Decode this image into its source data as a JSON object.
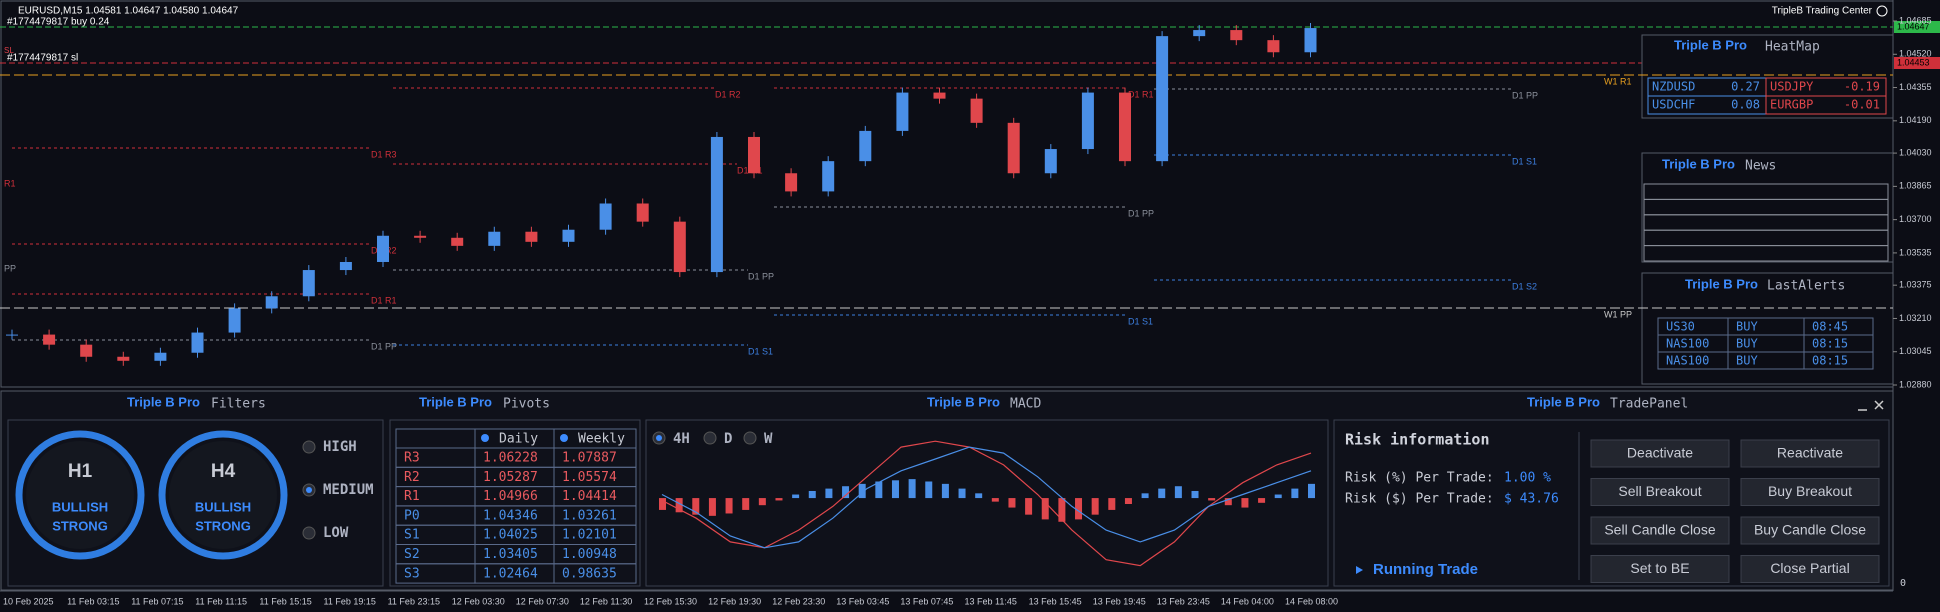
{
  "header": {
    "symbol": "EURUSD,M15  1.04581 1.04647 1.04580 1.04647",
    "order_buy": "#1774479817 buy 0.24",
    "order_sl": "#1774479817 sl",
    "sl_tag": "SL",
    "brand": "TripleB Trading Center"
  },
  "price_chart": {
    "closes": [
      1.0313,
      1.0308,
      1.0302,
      1.03,
      1.0304,
      1.0314,
      1.0326,
      1.0332,
      1.0345,
      1.0349,
      1.0362,
      1.0361,
      1.0357,
      1.0364,
      1.0359,
      1.0365,
      1.0378,
      1.0369,
      1.0344,
      1.0411,
      1.0393,
      1.0384,
      1.0399,
      1.0414,
      1.0433,
      1.043,
      1.0418,
      1.0393,
      1.0405,
      1.0433,
      1.0399,
      1.0461,
      1.0464,
      1.0459,
      1.0453,
      1.0465
    ],
    "ylim": [
      1.0288,
      1.04685
    ],
    "yticks": [
      {
        "value": 1.04685,
        "label": "1.04685"
      },
      {
        "value": 1.0452,
        "label": "1.04520"
      },
      {
        "value": 1.04355,
        "label": "1.04355"
      },
      {
        "value": 1.0419,
        "label": "1.04190"
      },
      {
        "value": 1.0403,
        "label": "1.04030"
      },
      {
        "value": 1.03865,
        "label": "1.03865"
      },
      {
        "value": 1.037,
        "label": "1.03700"
      },
      {
        "value": 1.03535,
        "label": "1.03535"
      },
      {
        "value": 1.03375,
        "label": "1.03375"
      },
      {
        "value": 1.0321,
        "label": "1.03210"
      },
      {
        "value": 1.03045,
        "label": "1.03045"
      },
      {
        "value": 1.0288,
        "label": "1.02880"
      }
    ],
    "current_tag": "1.04647",
    "sl_price_tag": "1.04453",
    "levels": [
      "D1 R3",
      "D1 R2",
      "D1 R1",
      "D1 PP",
      "D1 R2",
      "D1 R1",
      "D1 PP",
      "D1 S1",
      "D1 R1",
      "D1 PP",
      "D1 S1",
      "D1 PP",
      "D1 S1",
      "D1 S2",
      "W1 R1",
      "W1 PP",
      "R1",
      "PP"
    ]
  },
  "time_axis": [
    "10 Feb 2025",
    "11 Feb 03:15",
    "11 Feb 07:15",
    "11 Feb 11:15",
    "11 Feb 15:15",
    "11 Feb 19:15",
    "11 Feb 23:15",
    "12 Feb 03:30",
    "12 Feb 07:30",
    "12 Feb 11:30",
    "12 Feb 15:30",
    "12 Feb 19:30",
    "12 Feb 23:30",
    "13 Feb 03:45",
    "13 Feb 07:45",
    "13 Feb 11:45",
    "13 Feb 15:45",
    "13 Feb 19:45",
    "13 Feb 23:45",
    "14 Feb 04:00",
    "14 Feb 08:00"
  ],
  "heatmap": {
    "brand": "Triple B Pro",
    "title": "HeatMap",
    "rows": [
      [
        [
          "NZDUSD",
          "0.27"
        ],
        [
          "USDJPY",
          "-0.19"
        ]
      ],
      [
        [
          "USDCHF",
          "0.08"
        ],
        [
          "EURGBP",
          "-0.01"
        ]
      ]
    ]
  },
  "news": {
    "brand": "Triple B Pro",
    "title": "News"
  },
  "alerts": {
    "brand": "Triple B Pro",
    "title": "LastAlerts",
    "rows": [
      [
        "US30",
        "BUY",
        "08:45"
      ],
      [
        "NAS100",
        "BUY",
        "08:15"
      ],
      [
        "NAS100",
        "BUY",
        "08:15"
      ]
    ]
  },
  "filters": {
    "brand": "Triple B Pro",
    "title": "Filters",
    "gauges": [
      {
        "tf": "H1",
        "line1": "BULLISH",
        "line2": "STRONG"
      },
      {
        "tf": "H4",
        "line1": "BULLISH",
        "line2": "STRONG"
      }
    ],
    "options": [
      "HIGH",
      "MEDIUM",
      "LOW"
    ]
  },
  "pivots": {
    "brand": "Triple B Pro",
    "title": "Pivots",
    "columns": [
      "Daily",
      "Weekly"
    ],
    "rows": [
      [
        "R3",
        "1.06228",
        "1.07887"
      ],
      [
        "R2",
        "1.05287",
        "1.05574"
      ],
      [
        "R1",
        "1.04966",
        "1.04414"
      ],
      [
        "P0",
        "1.04346",
        "1.03261"
      ],
      [
        "S1",
        "1.04025",
        "1.02101"
      ],
      [
        "S2",
        "1.03405",
        "1.00948"
      ],
      [
        "S3",
        "1.02464",
        "0.98635"
      ]
    ]
  },
  "macd": {
    "brand": "Triple B Pro",
    "title": "MACD",
    "timeframes": [
      "4H",
      "D",
      "W"
    ],
    "axis_label": "0",
    "ylim": [
      -0.0007,
      0.0006
    ],
    "histogram": [
      -0.0001,
      -0.00012,
      -0.00014,
      -0.00015,
      -0.00013,
      -0.0001,
      -6e-05,
      -2e-05,
      3e-05,
      6e-05,
      8e-05,
      0.0001,
      0.00012,
      0.00014,
      0.00015,
      0.00016,
      0.00014,
      0.00012,
      8e-05,
      4e-05,
      -3e-05,
      -8e-05,
      -0.00014,
      -0.00018,
      -0.0002,
      -0.00018,
      -0.00014,
      -0.0001,
      -5e-05,
      4e-05,
      8e-05,
      0.0001,
      6e-05,
      -2e-05,
      -6e-05,
      -8e-05,
      -4e-05,
      3e-05,
      8e-05,
      0.00012
    ],
    "macd_line": [
      -2e-05,
      -0.00017,
      -0.00037,
      -0.00042,
      -0.00027,
      -7e-05,
      0.00018,
      0.00043,
      0.00048,
      0.00043,
      0.00028,
      3e-05,
      -0.00027,
      -0.00052,
      -0.00057,
      -0.00037,
      -7e-05,
      0.00013,
      0.00028,
      0.00038
    ],
    "signal_line": [
      3e-05,
      -0.00012,
      -0.00032,
      -0.00042,
      -0.00037,
      -0.00017,
      8e-05,
      0.00023,
      0.00033,
      0.00043,
      0.00038,
      0.00018,
      -7e-05,
      -0.00027,
      -0.00037,
      -0.00027,
      -7e-05,
      3e-05,
      0.00013,
      0.00023
    ]
  },
  "trade_panel": {
    "brand": "Triple B Pro",
    "title": "TradePanel",
    "risk_title": "Risk information",
    "risk_pct_label": "Risk (%) Per Trade:",
    "risk_pct": "1.00 %",
    "risk_usd_label": "Risk ($) Per Trade:",
    "risk_usd": "$ 43.76",
    "running": "Running Trade",
    "buttons": [
      "Deactivate",
      "Reactivate",
      "Sell Breakout",
      "Buy Breakout",
      "Sell Candle Close",
      "Buy Candle Close",
      "Set to BE",
      "Close Partial"
    ]
  }
}
